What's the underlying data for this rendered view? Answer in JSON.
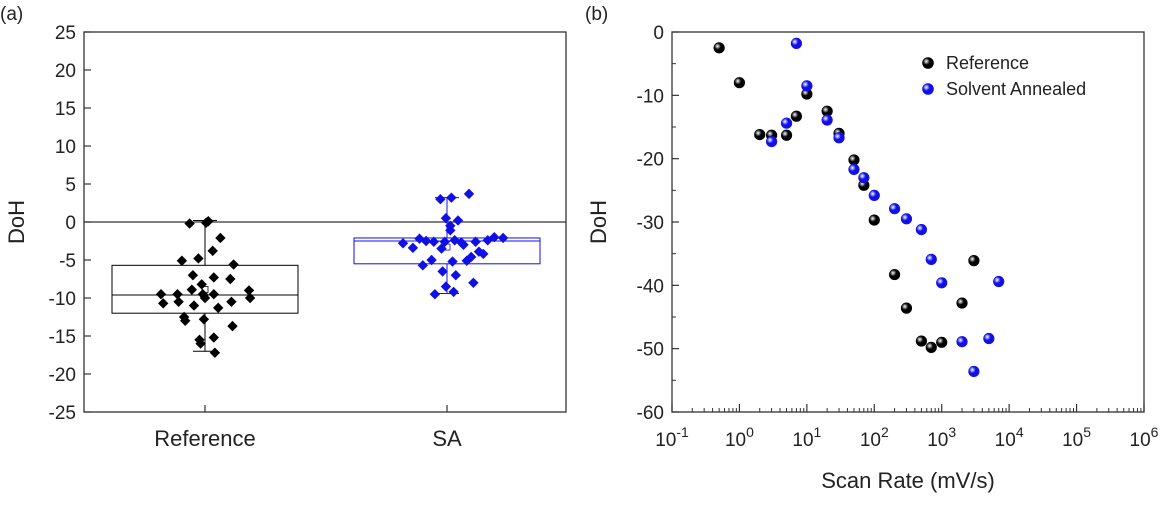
{
  "chart_data": [
    {
      "type": "box-scatter",
      "panel_label": "(a)",
      "ylabel": "DoH",
      "categories": [
        "Reference",
        "SA"
      ],
      "ylim": [
        -25,
        25
      ],
      "yticks": [
        25,
        20,
        15,
        10,
        5,
        0,
        -5,
        -10,
        -15,
        -20,
        -25
      ],
      "zero_line": true,
      "colors": {
        "Reference": "#000000",
        "SA": "#1010e6"
      },
      "boxes": [
        {
          "category": "Reference",
          "q1": -12.0,
          "median": -9.6,
          "q3": -5.7,
          "whisker_low": -17.0,
          "whisker_high": 0.2,
          "mean": -8.9
        },
        {
          "category": "SA",
          "q1": -5.5,
          "median": -2.5,
          "q3": -2.1,
          "whisker_low": -9.4,
          "whisker_high": 3.2,
          "mean": -3.3
        }
      ],
      "series": [
        {
          "name": "Reference",
          "points": [
            [
              -0.4,
              -9.5
            ],
            [
              -0.38,
              -10.7
            ],
            [
              -0.25,
              -9.5
            ],
            [
              -0.24,
              -10.5
            ],
            [
              -0.21,
              -5.1
            ],
            [
              -0.19,
              -12.5
            ],
            [
              -0.18,
              -13.0
            ],
            [
              -0.14,
              -0.2
            ],
            [
              -0.12,
              -8.9
            ],
            [
              -0.11,
              -7.0
            ],
            [
              -0.1,
              -11.0
            ],
            [
              -0.06,
              -4.8
            ],
            [
              -0.05,
              -15.5
            ],
            [
              -0.04,
              -16.0
            ],
            [
              -0.03,
              -8.2
            ],
            [
              -0.02,
              -9.5
            ],
            [
              -0.01,
              -12.8
            ],
            [
              0.0,
              -10.0
            ],
            [
              0.01,
              -0.1
            ],
            [
              0.03,
              0.1
            ],
            [
              0.07,
              -3.8
            ],
            [
              0.08,
              -7.3
            ],
            [
              0.08,
              -9.5
            ],
            [
              0.08,
              -15.2
            ],
            [
              0.09,
              -17.2
            ],
            [
              0.12,
              -11.3
            ],
            [
              0.14,
              -2.1
            ],
            [
              0.23,
              -7.5
            ],
            [
              0.24,
              -10.5
            ],
            [
              0.25,
              -13.7
            ],
            [
              0.26,
              -5.6
            ],
            [
              0.4,
              -9.0
            ],
            [
              0.41,
              -10.0
            ]
          ]
        },
        {
          "name": "SA",
          "points": [
            [
              -0.4,
              -2.8
            ],
            [
              -0.31,
              -3.4
            ],
            [
              -0.25,
              -2.2
            ],
            [
              -0.22,
              -5.7
            ],
            [
              -0.19,
              -2.5
            ],
            [
              -0.14,
              -5.0
            ],
            [
              -0.12,
              -2.6
            ],
            [
              -0.11,
              -9.5
            ],
            [
              -0.05,
              -3.5
            ],
            [
              -0.04,
              -6.5
            ],
            [
              -0.02,
              -2.6
            ],
            [
              -0.01,
              -8.5
            ],
            [
              -0.01,
              0.5
            ],
            [
              0.03,
              -0.5
            ],
            [
              0.03,
              -1.1
            ],
            [
              0.04,
              3.2
            ],
            [
              -0.06,
              3.0
            ],
            [
              0.05,
              -5.2
            ],
            [
              0.06,
              -9.2
            ],
            [
              0.07,
              -2.4
            ],
            [
              0.08,
              -7.0
            ],
            [
              0.1,
              0.2
            ],
            [
              0.13,
              -2.7
            ],
            [
              0.15,
              -3.0
            ],
            [
              0.18,
              -5.1
            ],
            [
              0.2,
              3.7
            ],
            [
              0.22,
              -4.6
            ],
            [
              0.24,
              -8.0
            ],
            [
              0.26,
              -2.6
            ],
            [
              0.29,
              -3.9
            ],
            [
              0.33,
              -4.2
            ],
            [
              0.37,
              -2.4
            ],
            [
              0.43,
              -2.0
            ],
            [
              0.51,
              -2.1
            ]
          ]
        }
      ]
    },
    {
      "type": "scatter",
      "panel_label": "(b)",
      "xlabel": "Scan Rate (mV/s)",
      "ylabel": "DoH",
      "xscale": "log",
      "xlim": [
        0.1,
        1000000
      ],
      "ylim": [
        -60,
        0
      ],
      "yticks": [
        0,
        -10,
        -20,
        -30,
        -40,
        -50,
        -60
      ],
      "xticks": [
        {
          "value": 0.1,
          "base": "10",
          "exp": "-1"
        },
        {
          "value": 1,
          "base": "10",
          "exp": "0"
        },
        {
          "value": 10,
          "base": "10",
          "exp": "1"
        },
        {
          "value": 100,
          "base": "10",
          "exp": "2"
        },
        {
          "value": 1000,
          "base": "10",
          "exp": "3"
        },
        {
          "value": 10000,
          "base": "10",
          "exp": "4"
        },
        {
          "value": 100000,
          "base": "10",
          "exp": "5"
        },
        {
          "value": 1000000,
          "base": "10",
          "exp": "6"
        }
      ],
      "legend_position": "top-right",
      "series": [
        {
          "name": "Reference",
          "color": "#000000",
          "points": [
            [
              0.5,
              -2.5
            ],
            [
              1,
              -8.0
            ],
            [
              2,
              -16.2
            ],
            [
              3,
              -16.3
            ],
            [
              5,
              -16.3
            ],
            [
              7,
              -13.3
            ],
            [
              10,
              -9.8
            ],
            [
              20,
              -12.5
            ],
            [
              30,
              -16.0
            ],
            [
              50,
              -20.2
            ],
            [
              70,
              -24.2
            ],
            [
              100,
              -29.7
            ],
            [
              200,
              -38.3
            ],
            [
              300,
              -43.6
            ],
            [
              500,
              -48.8
            ],
            [
              700,
              -49.8
            ],
            [
              1000,
              -49.0
            ],
            [
              2000,
              -42.8
            ],
            [
              3000,
              -36.1
            ]
          ]
        },
        {
          "name": "Solvent Annealed",
          "color": "#1010e6",
          "points": [
            [
              3,
              -17.3
            ],
            [
              5,
              -14.4
            ],
            [
              7,
              -1.8
            ],
            [
              10,
              -8.5
            ],
            [
              20,
              -13.9
            ],
            [
              30,
              -16.7
            ],
            [
              50,
              -21.7
            ],
            [
              70,
              -23.0
            ],
            [
              100,
              -25.8
            ],
            [
              200,
              -27.9
            ],
            [
              300,
              -29.5
            ],
            [
              500,
              -31.2
            ],
            [
              700,
              -35.9
            ],
            [
              1000,
              -39.6
            ],
            [
              2000,
              -48.9
            ],
            [
              3000,
              -53.6
            ],
            [
              5000,
              -48.4
            ],
            [
              7000,
              -39.4
            ]
          ]
        }
      ]
    }
  ]
}
